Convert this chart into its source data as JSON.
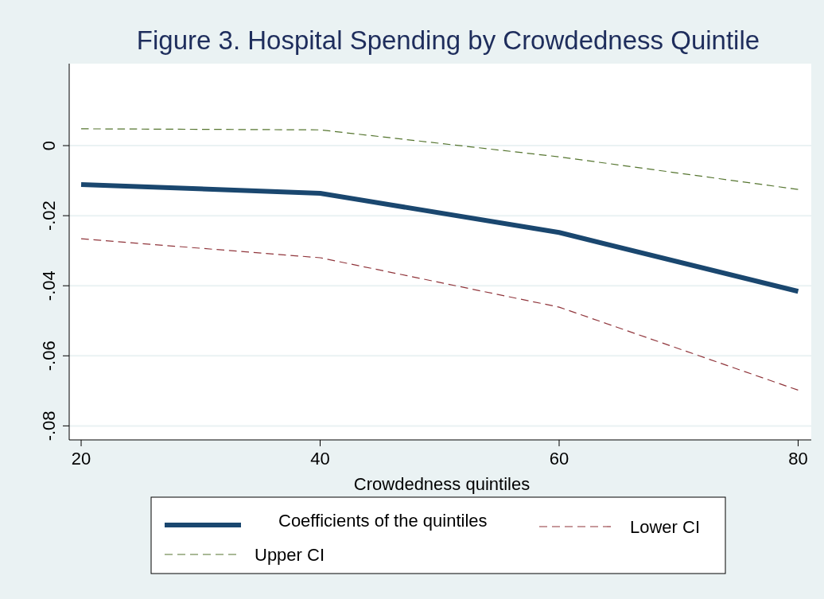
{
  "chart_data": {
    "type": "line",
    "title": "Figure 3. Hospital Spending by Crowdedness Quintile",
    "xlabel": "Crowdedness quintiles",
    "x": [
      20,
      40,
      60,
      80
    ],
    "series": [
      {
        "name": "Coefficients of the quintiles",
        "color": "#1a476f",
        "values": [
          -0.0111,
          -0.0136,
          -0.0248,
          -0.0416
        ],
        "line_style": "solid"
      },
      {
        "name": "Lower CI",
        "color": "#90353b",
        "values": [
          -0.0266,
          -0.032,
          -0.0461,
          -0.0698
        ],
        "line_style": "dashed"
      },
      {
        "name": "Upper CI",
        "color": "#55752f",
        "values": [
          0.0048,
          0.0045,
          -0.0032,
          -0.0125
        ],
        "line_style": "dashed"
      }
    ],
    "xlim": [
      19,
      81.1
    ],
    "xticks": [
      20,
      40,
      60,
      80
    ],
    "ylim": [
      -0.084,
      0.0234
    ],
    "yticks": [
      {
        "value": 0,
        "label": "0"
      },
      {
        "value": -0.02,
        "label": "-.02"
      },
      {
        "value": -0.04,
        "label": "-.04"
      },
      {
        "value": -0.06,
        "label": "-.06"
      },
      {
        "value": -0.08,
        "label": "-.08"
      }
    ],
    "grid": "y",
    "legend": "bottom",
    "marker": "none"
  }
}
